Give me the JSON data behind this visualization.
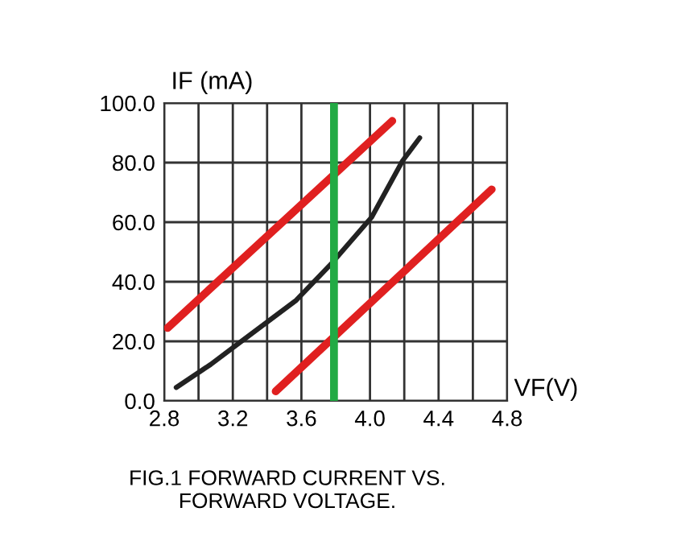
{
  "chart_data": {
    "type": "line",
    "xlabel": "VF(V)",
    "ylabel": "IF (mA)",
    "annotations": [
      "FIG.1 FORWARD CURRENT VS.\nFORWARD VOLTAGE."
    ],
    "series": [
      {
        "color": "#e02020",
        "x": [
          2.82,
          4.13
        ],
        "values": [
          24.5,
          94
        ]
      },
      {
        "color": "#222222",
        "x": [
          2.87,
          3.07,
          3.25,
          3.57,
          3.78,
          4.01,
          4.19,
          4.29
        ],
        "values": [
          4.5,
          12.2,
          20,
          33.8,
          46.4,
          61.7,
          80.6,
          88.3
        ]
      },
      {
        "color": "#e02020",
        "x": [
          3.45,
          4.71
        ],
        "values": [
          3.2,
          71
        ]
      }
    ],
    "xlim": [
      2.8,
      4.8
    ],
    "xticks": [
      2.8,
      {
        "value": 3.0,
        "label": null
      },
      3.2,
      {
        "value": 3.4,
        "label": null
      },
      3.6,
      {
        "value": 3.8,
        "label": null
      },
      {
        "value": 4,
        "label": "4.0"
      },
      {
        "value": 4.2,
        "label": null
      },
      4.4,
      {
        "value": 4.6,
        "label": null
      },
      4.8
    ],
    "ylim": [
      0,
      100
    ],
    "yticks": [
      {
        "value": 0,
        "label": "0.0"
      },
      {
        "value": 20,
        "label": "20.0"
      },
      {
        "value": 40,
        "label": "40.0"
      },
      {
        "value": 60,
        "label": "60.0"
      },
      {
        "value": 80,
        "label": "80.0"
      },
      {
        "value": 100,
        "label": "100.0"
      }
    ],
    "ref_lines": [
      {
        "axis": "x",
        "value": 3.79,
        "color": "#22aa44"
      }
    ],
    "grid": true,
    "marker": "none",
    "line_style": "solid"
  }
}
